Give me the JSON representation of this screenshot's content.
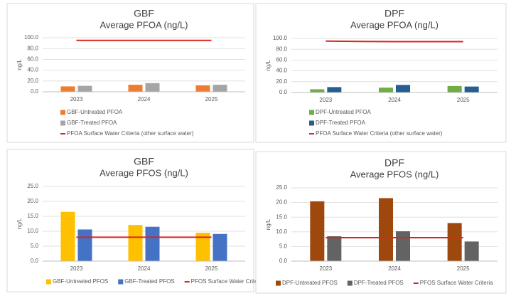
{
  "chart_data": [
    {
      "type": "bar",
      "title": "GBF",
      "subtitle": "Average PFOA (ng/L)",
      "ylabel": "ng/L",
      "categories": [
        "2023",
        "2024",
        "2025"
      ],
      "series": [
        {
          "name": "GBF-Untreated PFOA",
          "color": "#ed7d31",
          "values": [
            10,
            13,
            12
          ]
        },
        {
          "name": "GBF-Treated PFOA",
          "color": "#a5a5a5",
          "values": [
            11,
            16,
            13
          ]
        },
        {
          "name": "PFOA Surface Water Criteria (other surface water)",
          "color": "#d9261c",
          "type": "line",
          "values": [
            95,
            95,
            95
          ]
        }
      ],
      "ylim": [
        0,
        100
      ],
      "yticks": [
        {
          "value": 0,
          "label": "0.0"
        },
        {
          "value": 20,
          "label": "20.0"
        },
        {
          "value": 40,
          "label": "40.0"
        },
        {
          "value": 60,
          "label": "60.0"
        },
        {
          "value": 80,
          "label": "80.0"
        },
        {
          "value": 100,
          "label": "100.0"
        }
      ],
      "grid": true,
      "legend": "bottom"
    },
    {
      "type": "bar",
      "title": "DPF",
      "subtitle": "Average PFOA (ng/L)",
      "ylabel": "ng/L",
      "categories": [
        "2023",
        "2024",
        "2025"
      ],
      "series": [
        {
          "name": "DPF-Untreated PFOA",
          "color": "#70ad47",
          "values": [
            6,
            9,
            12
          ]
        },
        {
          "name": "DPF-Treated PFOA",
          "color": "#255e91",
          "values": [
            10,
            14,
            11
          ]
        },
        {
          "name": "PFOA Surface Water Criteria (other surface water)",
          "color": "#d9261c",
          "type": "line",
          "values": [
            95,
            94,
            94
          ]
        }
      ],
      "ylim": [
        0,
        100
      ],
      "yticks": [
        {
          "value": 0,
          "label": "0.0"
        },
        {
          "value": 20,
          "label": "20.0"
        },
        {
          "value": 40,
          "label": "40.0"
        },
        {
          "value": 60,
          "label": "60.0"
        },
        {
          "value": 80,
          "label": "80.0"
        },
        {
          "value": 100,
          "label": "100.0"
        }
      ],
      "grid": true,
      "legend": "bottom"
    },
    {
      "type": "bar",
      "title": "GBF",
      "subtitle": "Average PFOS (ng/L)",
      "ylabel": "ng/L",
      "categories": [
        "2023",
        "2024",
        "2025"
      ],
      "series": [
        {
          "name": "GBF-Untreated PFOS",
          "color": "#ffc000",
          "values": [
            16.5,
            12.1,
            9.5
          ]
        },
        {
          "name": "GBF-Treated PFOS",
          "color": "#4472c4",
          "values": [
            10.6,
            11.5,
            9.1
          ]
        },
        {
          "name": "PFOS Surface Water Criteria",
          "color": "#d9261c",
          "type": "line",
          "values": [
            8,
            8,
            8
          ]
        }
      ],
      "ylim": [
        0,
        25
      ],
      "yticks": [
        {
          "value": 0,
          "label": "0.0"
        },
        {
          "value": 5,
          "label": "5.0"
        },
        {
          "value": 10,
          "label": "10.0"
        },
        {
          "value": 15,
          "label": "15.0"
        },
        {
          "value": 20,
          "label": "20.0"
        },
        {
          "value": 25,
          "label": "25.0"
        }
      ],
      "grid": true,
      "legend": "bottom"
    },
    {
      "type": "bar",
      "title": "DPF",
      "subtitle": "Average PFOS (ng/L)",
      "ylabel": "ng/L",
      "categories": [
        "2023",
        "2024",
        "2025"
      ],
      "series": [
        {
          "name": "DPF-Untreated PFOS",
          "color": "#9e480e",
          "values": [
            20.4,
            21.5,
            13.0
          ]
        },
        {
          "name": "DPF-Treated PFOS",
          "color": "#636363",
          "values": [
            8.5,
            10.2,
            6.7
          ]
        },
        {
          "name": "PFOS Surface Water Criteria",
          "color": "#d9261c",
          "type": "line",
          "values": [
            8,
            8,
            8
          ]
        }
      ],
      "ylim": [
        0,
        25
      ],
      "yticks": [
        {
          "value": 0,
          "label": "0.0"
        },
        {
          "value": 5,
          "label": "5.0"
        },
        {
          "value": 10,
          "label": "10.0"
        },
        {
          "value": 15,
          "label": "15.0"
        },
        {
          "value": 20,
          "label": "20.0"
        },
        {
          "value": 25,
          "label": "25.0"
        }
      ],
      "grid": true,
      "legend": "bottom"
    }
  ]
}
